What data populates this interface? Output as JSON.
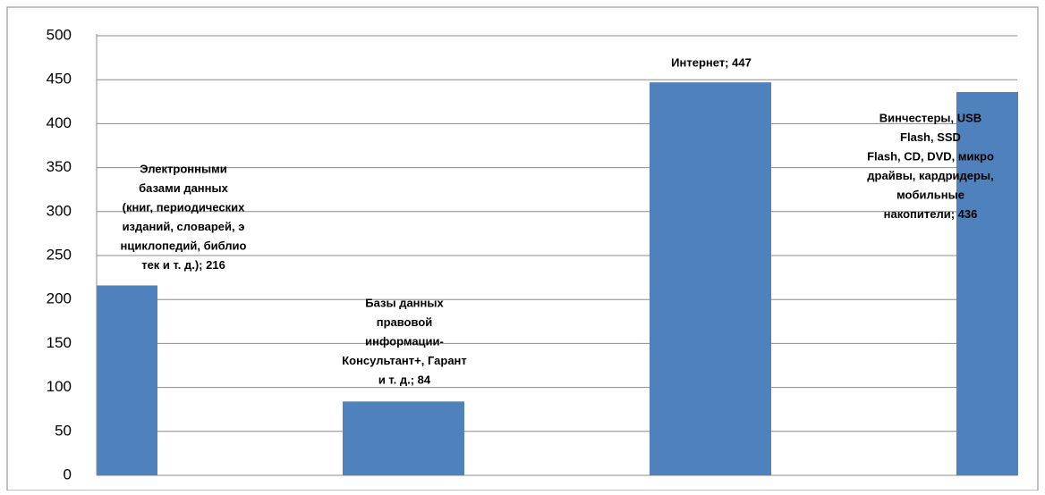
{
  "chart_data": {
    "type": "bar",
    "values": [
      216,
      84,
      447,
      436
    ],
    "value_labels": [
      [
        "Электронными",
        "базами данных",
        "(книг, периодических",
        "изданий, словарей, э",
        "нциклопедий, библио",
        "тек и т. д.); 216"
      ],
      [
        "Базы данных",
        "правовой",
        "информации-",
        "Консультант+, Гарант",
        "и т. д.; 84"
      ],
      [
        "Интернет; 447"
      ],
      [
        "Винчестеры, USB",
        "Flash, SSD",
        "Flash, CD, DVD, микро",
        "драйвы, кардридеры,",
        "мобильные",
        "накопители; 436"
      ]
    ],
    "color": "#4f81bd",
    "ylim": [
      0,
      500
    ],
    "yticks": [
      0,
      50,
      100,
      150,
      200,
      250,
      300,
      350,
      400,
      450,
      500
    ],
    "grid": true
  }
}
